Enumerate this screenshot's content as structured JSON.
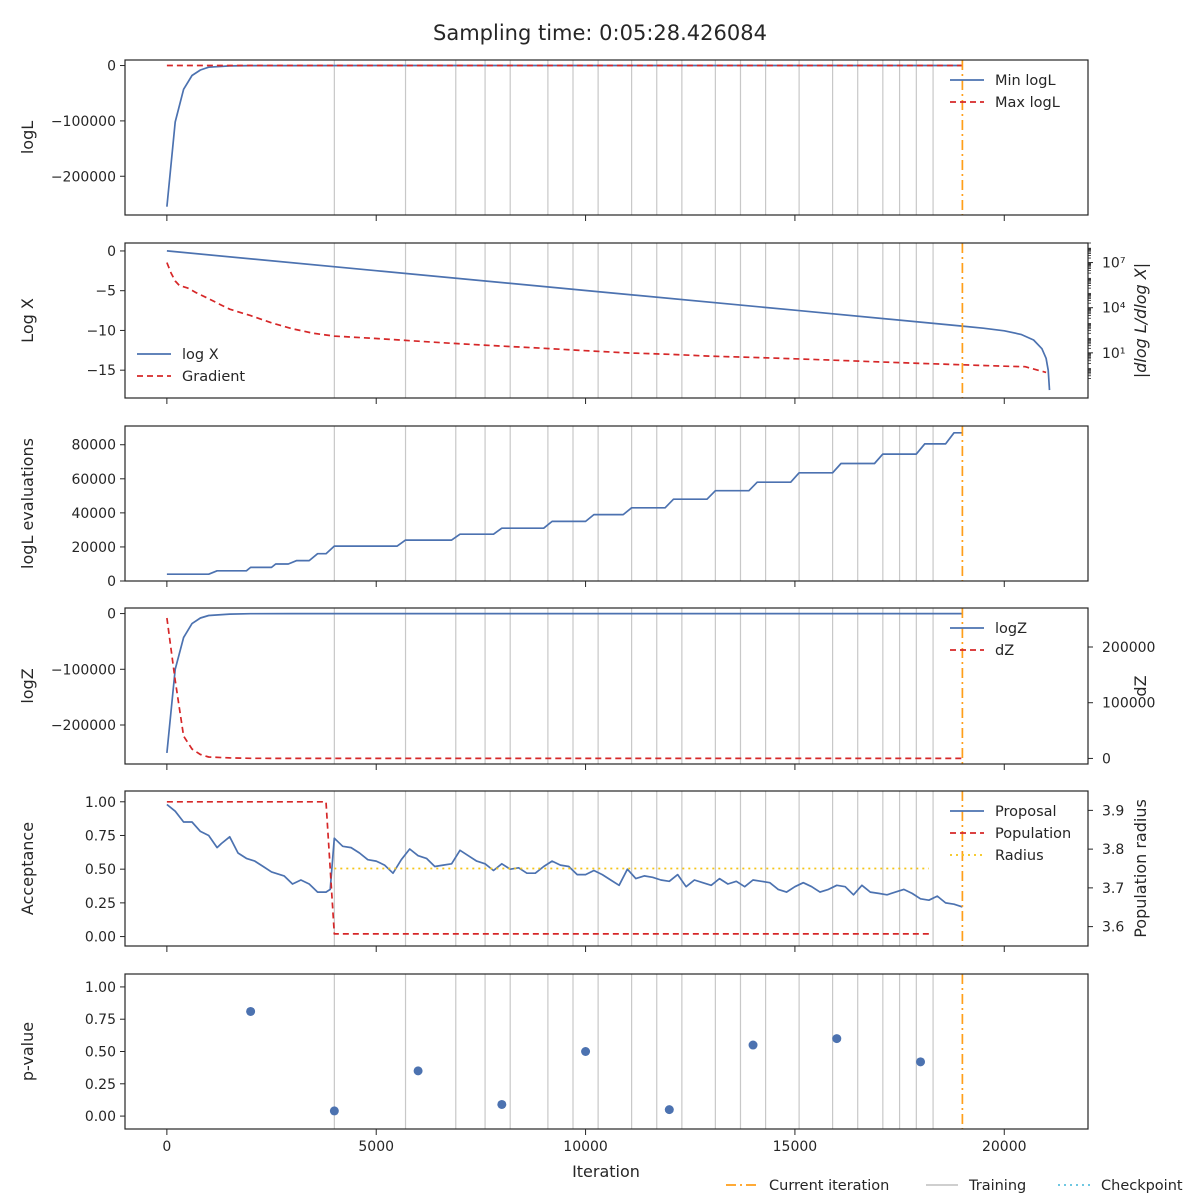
{
  "title": "Sampling time: 0:05:28.426084",
  "colors": {
    "blue": "#4c72b0",
    "red": "#d62728",
    "orange": "#ff9f1a",
    "gray": "#c8c8c8",
    "gold": "#f5c518",
    "cyan": "#5bc0de",
    "axis": "#262626"
  },
  "xaxis": {
    "label": "Iteration",
    "ticks": [
      0,
      5000,
      10000,
      15000,
      20000
    ],
    "tick_labels": [
      "0",
      "5000",
      "10000",
      "15000",
      "20000"
    ],
    "range": [
      -1000,
      22000
    ]
  },
  "figure_legend": [
    {
      "label": "Current iteration",
      "style": "dashdot",
      "color": "orange"
    },
    {
      "label": "Training",
      "style": "solid",
      "color": "gray"
    },
    {
      "label": "Checkpoint",
      "style": "dotted",
      "color": "cyan"
    }
  ],
  "chart_data": [
    {
      "type": "line",
      "ylabel": "logL",
      "ylim": [
        -270000,
        10000
      ],
      "yticks": [
        0,
        -100000,
        -200000
      ],
      "ytick_labels": [
        "0",
        "−100000",
        "−200000"
      ],
      "legend": "top-right",
      "current_iteration": 19000,
      "training_iterations": [
        4000,
        5700,
        6900,
        7600,
        8200,
        9100,
        9700,
        10300,
        11100,
        11700,
        12300,
        13100,
        13700,
        14300,
        15100,
        15900,
        16500,
        17100,
        17500,
        17900,
        18300
      ],
      "series": [
        {
          "name": "Min logL",
          "color": "blue",
          "style": "solid",
          "x": [
            0,
            200,
            400,
            600,
            800,
            1000,
            1500,
            2000,
            3000,
            5000,
            10000,
            15000,
            19000
          ],
          "y": [
            -255000,
            -102000,
            -43000,
            -18000,
            -8000,
            -3000,
            -700,
            -200,
            -40,
            -10,
            -2,
            0,
            0
          ]
        },
        {
          "name": "Max logL",
          "color": "red",
          "style": "dashed",
          "x": [
            0,
            19000
          ],
          "y": [
            0,
            0
          ]
        }
      ]
    },
    {
      "type": "line",
      "ylabel": "Log X",
      "ylabel2": "|dlog L/dlog X|",
      "ylim": [
        -18.5,
        1
      ],
      "yticks": [
        0,
        -5,
        -10,
        -15
      ],
      "ytick_labels": [
        "0",
        "−5",
        "−10",
        "−15"
      ],
      "y2scale": "log",
      "y2lim": [
        0.01,
        200000000
      ],
      "y2ticks": [
        10,
        10000,
        10000000
      ],
      "y2tick_labels": [
        "10¹",
        "10⁴",
        "10⁷"
      ],
      "legend": "bottom-left",
      "current_iteration": 19000,
      "training_iterations": [
        4000,
        5700,
        6900,
        7600,
        8200,
        9100,
        9700,
        10300,
        11100,
        11700,
        12300,
        13100,
        13700,
        14300,
        15100,
        15900,
        16500,
        17100,
        17500,
        17900,
        18300
      ],
      "series": [
        {
          "name": "log X",
          "color": "blue",
          "style": "solid",
          "axis": "left",
          "x": [
            0,
            5000,
            10000,
            15000,
            19000,
            19500,
            20000,
            20400,
            20700,
            20900,
            21000,
            21050,
            21080
          ],
          "y": [
            0,
            -2.48,
            -4.97,
            -7.45,
            -9.45,
            -9.72,
            -10.05,
            -10.5,
            -11.2,
            -12.3,
            -13.5,
            -15,
            -17.5
          ]
        },
        {
          "name": "Gradient",
          "color": "red",
          "style": "dashed",
          "axis": "right",
          "x": [
            0,
            100,
            200,
            300,
            500,
            700,
            1000,
            1300,
            1500,
            2000,
            2500,
            3000,
            3500,
            4000,
            5000,
            6000,
            7000,
            8000,
            9000,
            10000,
            11000,
            12000,
            13000,
            14000,
            15000,
            16000,
            17000,
            18000,
            19000,
            20000,
            20500,
            21000
          ],
          "y": [
            10000000,
            2000000,
            600000,
            300000,
            200000,
            100000,
            40000,
            15000,
            8000,
            3000,
            1000,
            400,
            200,
            130,
            90,
            60,
            40,
            28,
            20,
            14,
            10,
            8,
            6,
            5,
            4,
            3.2,
            2.5,
            2,
            1.6,
            1.3,
            1.2,
            0.5
          ]
        }
      ]
    },
    {
      "type": "line",
      "ylabel": "logL evaluations",
      "ylim": [
        0,
        91000
      ],
      "yticks": [
        0,
        20000,
        40000,
        60000,
        80000
      ],
      "ytick_labels": [
        "0",
        "20000",
        "40000",
        "60000",
        "80000"
      ],
      "current_iteration": 19000,
      "training_iterations": [
        4000,
        5700,
        6900,
        7600,
        8200,
        9100,
        9700,
        10300,
        11100,
        11700,
        12300,
        13100,
        13700,
        14300,
        15100,
        15900,
        16500,
        17100,
        17500,
        17900,
        18300
      ],
      "series": [
        {
          "name": "",
          "color": "blue",
          "style": "solid",
          "x": [
            0,
            1000,
            1200,
            1900,
            2000,
            2500,
            2600,
            2900,
            3100,
            3400,
            3600,
            3800,
            4000,
            5500,
            5700,
            6800,
            7000,
            7800,
            8000,
            9000,
            9200,
            10000,
            10200,
            10900,
            11100,
            11900,
            12100,
            12900,
            13100,
            13900,
            14100,
            14900,
            15100,
            15900,
            16100,
            16900,
            17100,
            17900,
            18100,
            18600,
            18800,
            19000
          ],
          "y": [
            4000,
            4000,
            6000,
            6000,
            8000,
            8000,
            10000,
            10000,
            12000,
            12000,
            16000,
            16000,
            20500,
            20500,
            24000,
            24000,
            27500,
            27500,
            31000,
            31000,
            35000,
            35000,
            39000,
            39000,
            43000,
            43000,
            48000,
            48000,
            53000,
            53000,
            58000,
            58000,
            63500,
            63500,
            69000,
            69000,
            74500,
            74500,
            80500,
            80500,
            87000,
            87000
          ]
        }
      ]
    },
    {
      "type": "line",
      "ylabel": "logZ",
      "ylabel2": "dZ",
      "ylim": [
        -270000,
        10000
      ],
      "yticks": [
        0,
        -100000,
        -200000
      ],
      "ytick_labels": [
        "0",
        "−100000",
        "−200000"
      ],
      "y2lim": [
        -10000,
        270000
      ],
      "y2ticks": [
        0,
        100000,
        200000
      ],
      "y2tick_labels": [
        "0",
        "100000",
        "200000"
      ],
      "legend": "top-right",
      "current_iteration": 19000,
      "training_iterations": [
        4000,
        5700,
        6900,
        7600,
        8200,
        9100,
        9700,
        10300,
        11100,
        11700,
        12300,
        13100,
        13700,
        14300,
        15100,
        15900,
        16500,
        17100,
        17500,
        17900,
        18300
      ],
      "series": [
        {
          "name": "logZ",
          "color": "blue",
          "style": "solid",
          "axis": "left",
          "x": [
            0,
            200,
            400,
            600,
            800,
            1000,
            1500,
            2000,
            3000,
            5000,
            10000,
            19000
          ],
          "y": [
            -250000,
            -100000,
            -43000,
            -18000,
            -8000,
            -3500,
            -900,
            -300,
            -50,
            0,
            0,
            0
          ]
        },
        {
          "name": "dZ",
          "color": "red",
          "style": "dashed",
          "axis": "right",
          "x": [
            0,
            200,
            400,
            600,
            800,
            1000,
            1500,
            2000,
            3000,
            5000,
            10000,
            19000
          ],
          "y": [
            252000,
            140000,
            40000,
            17000,
            7000,
            2500,
            900,
            300,
            50,
            0,
            0,
            0
          ]
        }
      ]
    },
    {
      "type": "line",
      "ylabel": "Acceptance",
      "ylabel2": "Population radius",
      "ylim": [
        -0.07,
        1.08
      ],
      "yticks": [
        0,
        0.25,
        0.5,
        0.75,
        1.0
      ],
      "ytick_labels": [
        "0.00",
        "0.25",
        "0.50",
        "0.75",
        "1.00"
      ],
      "y2lim": [
        3.55,
        3.95
      ],
      "y2ticks": [
        3.6,
        3.7,
        3.8,
        3.9
      ],
      "y2tick_labels": [
        "3.6",
        "3.7",
        "3.8",
        "3.9"
      ],
      "legend": "top-right",
      "current_iteration": 19000,
      "training_iterations": [
        4000,
        5700,
        6900,
        7600,
        8200,
        9100,
        9700,
        10300,
        11100,
        11700,
        12300,
        13100,
        13700,
        14300,
        15100,
        15900,
        16500,
        17100,
        17500,
        17900,
        18300
      ],
      "series": [
        {
          "name": "Proposal",
          "color": "blue",
          "style": "solid",
          "axis": "left",
          "x": [
            0,
            200,
            400,
            600,
            800,
            1000,
            1200,
            1300,
            1500,
            1700,
            1900,
            2100,
            2300,
            2500,
            2800,
            3000,
            3200,
            3400,
            3600,
            3800,
            3900,
            4000,
            4200,
            4400,
            4600,
            4800,
            5000,
            5200,
            5400,
            5600,
            5800,
            6000,
            6200,
            6400,
            6600,
            6800,
            7000,
            7200,
            7400,
            7600,
            7800,
            8000,
            8200,
            8400,
            8600,
            8800,
            9000,
            9200,
            9400,
            9600,
            9800,
            10000,
            10200,
            10400,
            10600,
            10800,
            11000,
            11200,
            11400,
            11600,
            11800,
            12000,
            12200,
            12400,
            12600,
            12800,
            13000,
            13200,
            13400,
            13600,
            13800,
            14000,
            14200,
            14400,
            14600,
            14800,
            15000,
            15200,
            15400,
            15600,
            15800,
            16000,
            16200,
            16400,
            16600,
            16800,
            17000,
            17200,
            17400,
            17600,
            17800,
            18000,
            18200,
            18400,
            18600,
            18800,
            19000
          ],
          "y": [
            0.98,
            0.93,
            0.85,
            0.85,
            0.78,
            0.75,
            0.66,
            0.69,
            0.74,
            0.62,
            0.58,
            0.56,
            0.52,
            0.48,
            0.45,
            0.39,
            0.42,
            0.39,
            0.33,
            0.33,
            0.35,
            0.73,
            0.67,
            0.66,
            0.62,
            0.57,
            0.56,
            0.53,
            0.47,
            0.57,
            0.65,
            0.6,
            0.58,
            0.52,
            0.53,
            0.54,
            0.64,
            0.6,
            0.56,
            0.54,
            0.49,
            0.54,
            0.5,
            0.51,
            0.47,
            0.47,
            0.52,
            0.56,
            0.53,
            0.52,
            0.46,
            0.46,
            0.49,
            0.46,
            0.42,
            0.38,
            0.5,
            0.43,
            0.45,
            0.44,
            0.42,
            0.41,
            0.46,
            0.37,
            0.42,
            0.4,
            0.38,
            0.43,
            0.39,
            0.41,
            0.37,
            0.42,
            0.41,
            0.4,
            0.35,
            0.33,
            0.37,
            0.4,
            0.37,
            0.33,
            0.35,
            0.38,
            0.37,
            0.31,
            0.38,
            0.33,
            0.32,
            0.31,
            0.33,
            0.35,
            0.32,
            0.28,
            0.27,
            0.3,
            0.25,
            0.24,
            0.22
          ]
        },
        {
          "name": "Population",
          "color": "red",
          "style": "dashed",
          "axis": "left",
          "x": [
            0,
            3800,
            4000,
            10000,
            18200
          ],
          "y": [
            1.0,
            1.0,
            0.02,
            0.02,
            0.02
          ]
        },
        {
          "name": "Radius",
          "color": "gold",
          "style": "dotted",
          "axis": "right",
          "x": [
            4000,
            18200
          ],
          "y": [
            3.75,
            3.75
          ]
        }
      ]
    },
    {
      "type": "scatter",
      "ylabel": "p-value",
      "ylim": [
        -0.1,
        1.1
      ],
      "yticks": [
        0,
        0.25,
        0.5,
        0.75,
        1.0
      ],
      "ytick_labels": [
        "0.00",
        "0.25",
        "0.50",
        "0.75",
        "1.00"
      ],
      "current_iteration": 19000,
      "training_iterations": [
        4000,
        5700,
        6900,
        7600,
        8200,
        9100,
        9700,
        10300,
        11100,
        11700,
        12300,
        13100,
        13700,
        14300,
        15100,
        15900,
        16500,
        17100,
        17500,
        17900,
        18300
      ],
      "series": [
        {
          "name": "",
          "color": "blue",
          "x": [
            2000,
            4000,
            6000,
            8000,
            10000,
            12000,
            14000,
            16000,
            18000
          ],
          "y": [
            0.81,
            0.04,
            0.35,
            0.09,
            0.5,
            0.05,
            0.55,
            0.6,
            0.42
          ]
        }
      ]
    }
  ]
}
